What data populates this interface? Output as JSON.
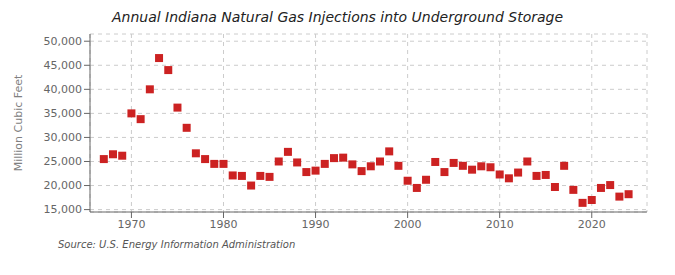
{
  "chart_data": {
    "type": "scatter",
    "title": "Annual Indiana Natural Gas Injections into Underground Storage",
    "ylabel": "Million Cubic Feet",
    "annotation": "Source: U.S. Energy Information Administration",
    "color": "#cc2222",
    "marker": "square",
    "grid": true,
    "xlim": [
      1965.5,
      2026
    ],
    "ylim": [
      14500,
      51500
    ],
    "xticks": [
      1970,
      1980,
      1990,
      2000,
      2010,
      2020
    ],
    "yticks": [
      {
        "value": 15000,
        "label": "15,000"
      },
      {
        "value": 20000,
        "label": "20,000"
      },
      {
        "value": 25000,
        "label": "25,000"
      },
      {
        "value": 30000,
        "label": "30,000"
      },
      {
        "value": 35000,
        "label": "35,000"
      },
      {
        "value": 40000,
        "label": "40,000"
      },
      {
        "value": 45000,
        "label": "45,000"
      },
      {
        "value": 50000,
        "label": "50,000"
      }
    ],
    "x": [
      1967,
      1968,
      1969,
      1970,
      1971,
      1972,
      1973,
      1974,
      1975,
      1976,
      1977,
      1978,
      1979,
      1980,
      1981,
      1982,
      1983,
      1984,
      1985,
      1986,
      1987,
      1988,
      1989,
      1990,
      1991,
      1992,
      1993,
      1994,
      1995,
      1996,
      1997,
      1998,
      1999,
      2000,
      2001,
      2002,
      2003,
      2004,
      2005,
      2006,
      2007,
      2008,
      2009,
      2010,
      2011,
      2012,
      2013,
      2014,
      2015,
      2016,
      2017,
      2018,
      2019,
      2020,
      2021,
      2022,
      2023,
      2024
    ],
    "values": [
      25500,
      26500,
      26200,
      35000,
      33800,
      40000,
      46500,
      44000,
      36200,
      32000,
      26700,
      25500,
      24500,
      24500,
      22100,
      22000,
      20000,
      22000,
      21800,
      25000,
      27000,
      24800,
      22800,
      23100,
      24500,
      25700,
      25800,
      24400,
      23000,
      24000,
      25000,
      27100,
      24100,
      21000,
      19500,
      21200,
      24900,
      22800,
      24700,
      24100,
      23300,
      24000,
      23800,
      22300,
      21500,
      22700,
      25000,
      22000,
      22200,
      19700,
      24100,
      19100,
      16400,
      17000,
      19500,
      20100,
      17700,
      18200
    ]
  }
}
